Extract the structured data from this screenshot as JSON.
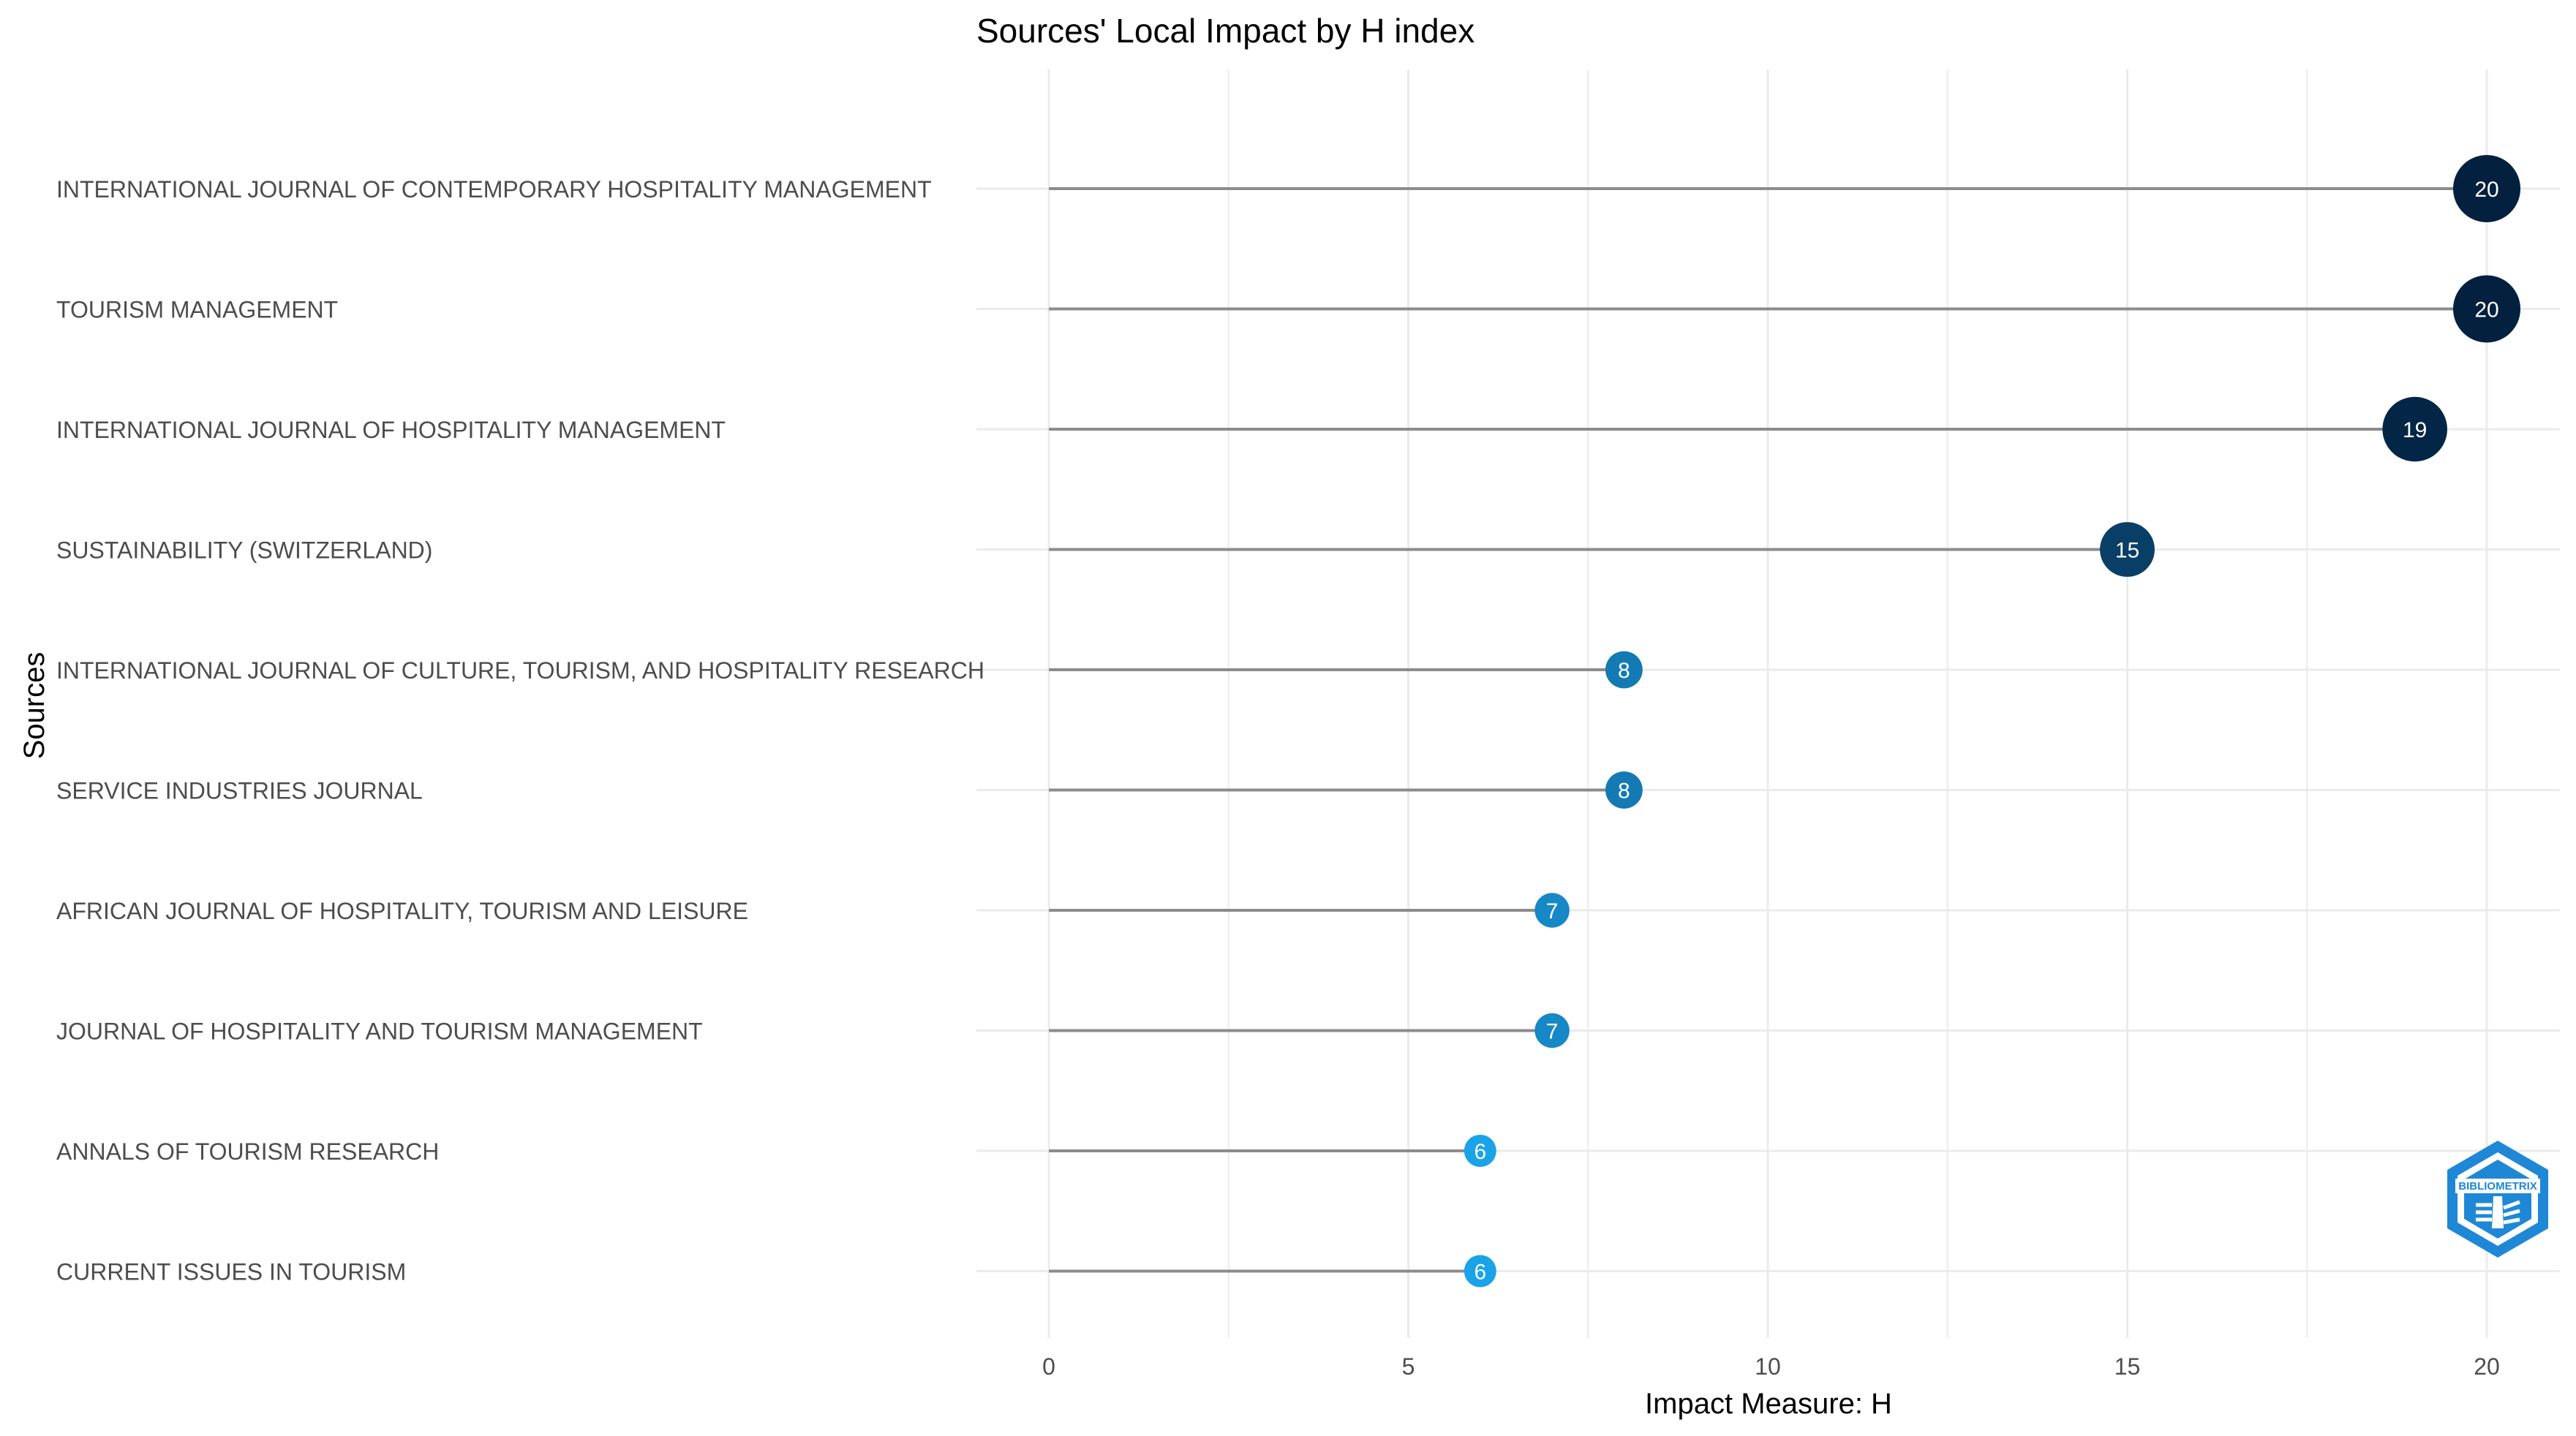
{
  "chart_data": {
    "type": "lollipop",
    "title": "Sources' Local Impact by H index",
    "xlabel": "Impact Measure: H",
    "ylabel": "Sources",
    "xlim": [
      0,
      20
    ],
    "xticks": [
      0,
      5,
      10,
      15,
      20
    ],
    "grid": true,
    "categories": [
      "INTERNATIONAL JOURNAL OF CONTEMPORARY HOSPITALITY MANAGEMENT",
      "TOURISM MANAGEMENT",
      "INTERNATIONAL JOURNAL OF HOSPITALITY MANAGEMENT",
      "SUSTAINABILITY (SWITZERLAND)",
      "INTERNATIONAL JOURNAL OF CULTURE, TOURISM, AND HOSPITALITY RESEARCH",
      "SERVICE INDUSTRIES JOURNAL",
      "AFRICAN JOURNAL OF HOSPITALITY, TOURISM AND LEISURE",
      "JOURNAL OF HOSPITALITY AND TOURISM MANAGEMENT",
      "ANNALS OF TOURISM RESEARCH",
      "CURRENT ISSUES IN TOURISM"
    ],
    "values": [
      20,
      20,
      19,
      15,
      8,
      8,
      7,
      7,
      6,
      6
    ],
    "colors": {
      "low": "#1ba3e8",
      "high": "#03203f",
      "stem": "#8c8c8c",
      "grid": "#ebebeb"
    },
    "logo_text": "BIBLIOMETRIX"
  }
}
